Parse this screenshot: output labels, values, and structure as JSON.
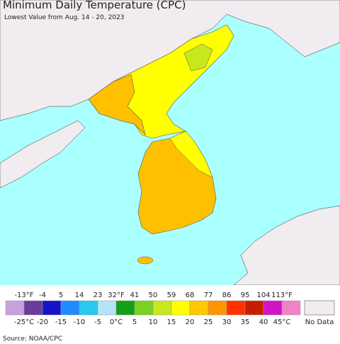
{
  "header": {
    "title": "Minimum Daily Temperature (CPC)",
    "subtitle": "Lowest Value from Aug. 14 - 20, 2023"
  },
  "legend": {
    "colors": [
      "#c8a0e0",
      "#6a3d9a",
      "#1414c8",
      "#1e8cff",
      "#28c8f0",
      "#b4e4f8",
      "#14a014",
      "#78d21e",
      "#c8e81e",
      "#ffff00",
      "#ffc800",
      "#ff9600",
      "#ff3200",
      "#c81e00",
      "#d214c8",
      "#f082c8"
    ],
    "f_labels": [
      "-13°F",
      "-4",
      "5",
      "14",
      "23",
      "32°F",
      "41",
      "50",
      "59",
      "68",
      "77",
      "86",
      "95",
      "104",
      "113°F"
    ],
    "c_labels": [
      "-25°C",
      "-20",
      "-15",
      "-10",
      "-5",
      "0°C",
      "5",
      "10",
      "15",
      "20",
      "25",
      "30",
      "35",
      "40",
      "45°C"
    ],
    "no_data": "No Data"
  },
  "footer": {
    "source": "Source: NOAA/CPC"
  }
}
